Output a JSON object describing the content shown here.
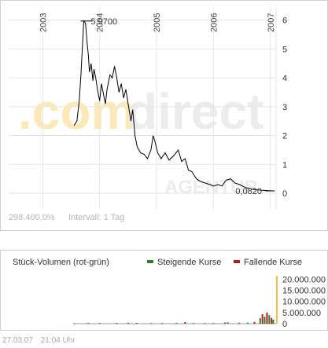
{
  "price_chart": {
    "watermark_left": ".com",
    "watermark_right": "direct",
    "watermark_small": "AGENTUR",
    "bottom_left_value": "298.400,0%",
    "interval_label": "Intervall: 1 Tag",
    "max_label": "5,9700",
    "min_label": "0,0820"
  },
  "volume_chart": {
    "title": "Stück-Volumen (rot-grün)",
    "legend_rising": "Steigende Kurse",
    "legend_falling": "Fallende Kurse",
    "color_rising": "#2e7d32",
    "color_falling": "#b71c1c",
    "color_volume_axis": "#f0c04a"
  },
  "footer": {
    "date": "27.03.07",
    "time": "21:04 Uhr"
  },
  "chart_data": [
    {
      "type": "line",
      "x_axis_labels": [
        "2003",
        "2004",
        "2005",
        "2006",
        "2007"
      ],
      "y_ticks": [
        0,
        1,
        2,
        3,
        4,
        5,
        6
      ],
      "ylim": [
        0,
        6.1
      ],
      "xlim": [
        2002.4,
        2007.1
      ],
      "grid": true,
      "series_color": "#000000",
      "points": [
        [
          2003.55,
          2.35
        ],
        [
          2003.6,
          2.5
        ],
        [
          2003.64,
          3.2
        ],
        [
          2003.67,
          4.1
        ],
        [
          2003.7,
          5.2
        ],
        [
          2003.72,
          5.97
        ],
        [
          2003.75,
          5.9
        ],
        [
          2003.78,
          5.2
        ],
        [
          2003.8,
          4.8
        ],
        [
          2003.82,
          4.2
        ],
        [
          2003.85,
          4.5
        ],
        [
          2003.88,
          3.9
        ],
        [
          2003.9,
          4.3
        ],
        [
          2003.93,
          4.0
        ],
        [
          2003.96,
          3.6
        ],
        [
          2004.0,
          3.2
        ],
        [
          2004.03,
          3.8
        ],
        [
          2004.06,
          3.5
        ],
        [
          2004.1,
          3.1
        ],
        [
          2004.13,
          3.6
        ],
        [
          2004.18,
          4.1
        ],
        [
          2004.22,
          4.0
        ],
        [
          2004.26,
          4.4
        ],
        [
          2004.3,
          4.0
        ],
        [
          2004.34,
          3.5
        ],
        [
          2004.38,
          3.8
        ],
        [
          2004.42,
          3.3
        ],
        [
          2004.46,
          3.6
        ],
        [
          2004.5,
          3.1
        ],
        [
          2004.55,
          2.5
        ],
        [
          2004.58,
          2.9
        ],
        [
          2004.62,
          2.0
        ],
        [
          2004.66,
          1.6
        ],
        [
          2004.72,
          1.4
        ],
        [
          2004.78,
          1.35
        ],
        [
          2004.84,
          1.2
        ],
        [
          2004.9,
          1.5
        ],
        [
          2004.94,
          2.0
        ],
        [
          2004.97,
          1.8
        ],
        [
          2005.02,
          1.4
        ],
        [
          2005.08,
          1.2
        ],
        [
          2005.15,
          1.4
        ],
        [
          2005.22,
          1.15
        ],
        [
          2005.3,
          1.3
        ],
        [
          2005.38,
          1.5
        ],
        [
          2005.44,
          1.1
        ],
        [
          2005.5,
          1.2
        ],
        [
          2005.56,
          0.8
        ],
        [
          2005.62,
          0.75
        ],
        [
          2005.7,
          0.5
        ],
        [
          2005.78,
          0.4
        ],
        [
          2005.86,
          0.35
        ],
        [
          2005.94,
          0.3
        ],
        [
          2006.0,
          0.25
        ],
        [
          2006.08,
          0.3
        ],
        [
          2006.15,
          0.25
        ],
        [
          2006.22,
          0.45
        ],
        [
          2006.3,
          0.5
        ],
        [
          2006.38,
          0.35
        ],
        [
          2006.46,
          0.3
        ],
        [
          2006.56,
          0.2
        ],
        [
          2006.66,
          0.15
        ],
        [
          2006.76,
          0.12
        ],
        [
          2006.86,
          0.1
        ],
        [
          2006.96,
          0.09
        ],
        [
          2007.05,
          0.082
        ]
      ]
    },
    {
      "type": "bar",
      "title": "Stück-Volumen (rot-grün)",
      "legend": [
        "Steigende Kurse",
        "Fallende Kurse"
      ],
      "legend_position": "top-right",
      "y_ticks": [
        0,
        5000000,
        10000000,
        15000000,
        20000000
      ],
      "y_tick_labels": [
        "0",
        "5.000.000",
        "10.000.000",
        "15.000.000",
        "20.000.000"
      ],
      "ylim": [
        0,
        21500000
      ],
      "xlim": [
        2002.4,
        2007.1
      ],
      "bars": [
        [
          2003.55,
          250000,
          "up"
        ],
        [
          2003.8,
          300000,
          "down"
        ],
        [
          2004.0,
          350000,
          "up"
        ],
        [
          2004.3,
          300000,
          "down"
        ],
        [
          2004.5,
          400000,
          "up"
        ],
        [
          2004.65,
          350000,
          "down"
        ],
        [
          2004.9,
          300000,
          "up"
        ],
        [
          2005.1,
          250000,
          "down"
        ],
        [
          2005.35,
          350000,
          "up"
        ],
        [
          2005.5,
          700000,
          "down"
        ],
        [
          2005.65,
          300000,
          "up"
        ],
        [
          2005.85,
          250000,
          "down"
        ],
        [
          2006.0,
          300000,
          "up"
        ],
        [
          2006.2,
          500000,
          "down"
        ],
        [
          2006.25,
          600000,
          "up"
        ],
        [
          2006.45,
          400000,
          "down"
        ],
        [
          2006.6,
          450000,
          "up"
        ],
        [
          2006.72,
          800000,
          "down"
        ],
        [
          2006.82,
          2500000,
          "up"
        ],
        [
          2006.86,
          4200000,
          "down"
        ],
        [
          2006.9,
          3100000,
          "up"
        ],
        [
          2006.94,
          5000000,
          "down"
        ],
        [
          2006.98,
          3800000,
          "up"
        ],
        [
          2007.02,
          2600000,
          "down"
        ],
        [
          2007.05,
          1800000,
          "up"
        ]
      ]
    }
  ]
}
